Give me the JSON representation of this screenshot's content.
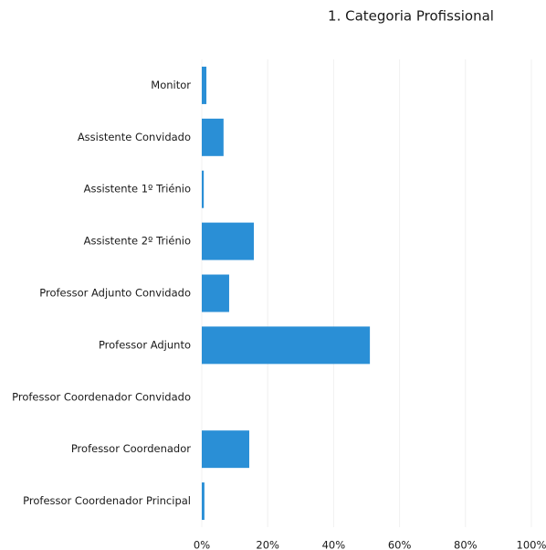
{
  "chart_data": {
    "type": "bar",
    "orientation": "horizontal",
    "title": "1. Categoria Profissional",
    "categories": [
      "Monitor",
      "Assistente Convidado",
      "Assistente 1º Triénio",
      "Assistente 2º Triénio",
      "Professor Adjunto Convidado",
      "Professor Adjunto",
      "Professor Coordenador Convidado",
      "Professor Coordenador",
      "Professor Coordenador Principal"
    ],
    "values": [
      1.4,
      6.6,
      0.6,
      15.8,
      8.3,
      51,
      0,
      14.4,
      0.8
    ],
    "color": "#2a8fd6",
    "xlim": [
      0,
      100
    ],
    "xticks": [
      {
        "value": 0,
        "label": "0%"
      },
      {
        "value": 20,
        "label": "20%"
      },
      {
        "value": 40,
        "label": "40%"
      },
      {
        "value": 60,
        "label": "60%"
      },
      {
        "value": 80,
        "label": "80%"
      },
      {
        "value": 100,
        "label": "100%"
      }
    ],
    "grid": true
  }
}
